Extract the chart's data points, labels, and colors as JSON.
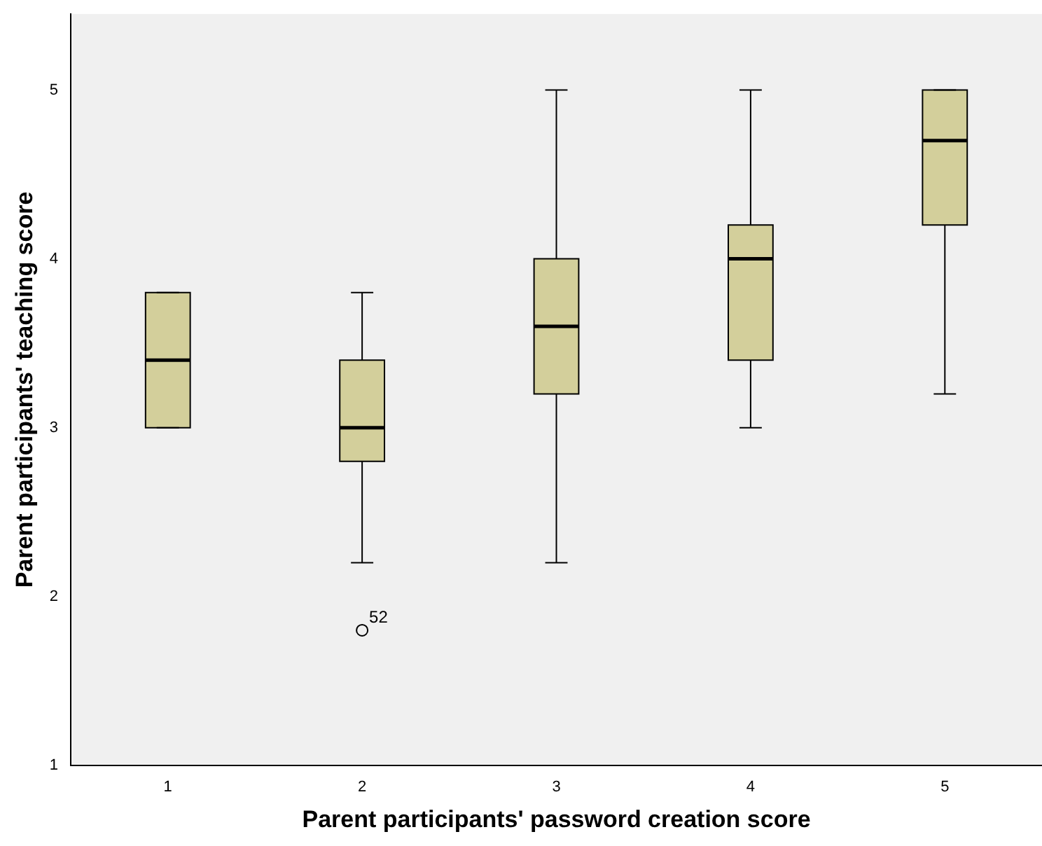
{
  "chart_data": {
    "type": "box",
    "xlabel": "Parent participants' password creation score",
    "ylabel": "Parent participants' teaching score",
    "categories": [
      "1",
      "2",
      "3",
      "4",
      "5"
    ],
    "color": "#d3cf9b",
    "boxes": [
      {
        "low": 3.0,
        "q1": 3.0,
        "median": 3.4,
        "q3": 3.8,
        "high": 3.8
      },
      {
        "low": 2.2,
        "q1": 2.8,
        "median": 3.0,
        "q3": 3.4,
        "high": 3.8,
        "outliers": [
          1.8
        ]
      },
      {
        "low": 2.2,
        "q1": 3.2,
        "median": 3.6,
        "q3": 4.0,
        "high": 5.0
      },
      {
        "low": 3.0,
        "q1": 3.4,
        "median": 4.0,
        "q3": 4.2,
        "high": 5.0
      },
      {
        "low": 3.2,
        "q1": 4.2,
        "median": 4.7,
        "q3": 5.0,
        "high": 5.0
      }
    ],
    "ylim": [
      1,
      5.45
    ],
    "yticks": [
      1,
      2,
      3,
      4,
      5
    ],
    "grid": false,
    "annotations": [
      "52"
    ]
  }
}
